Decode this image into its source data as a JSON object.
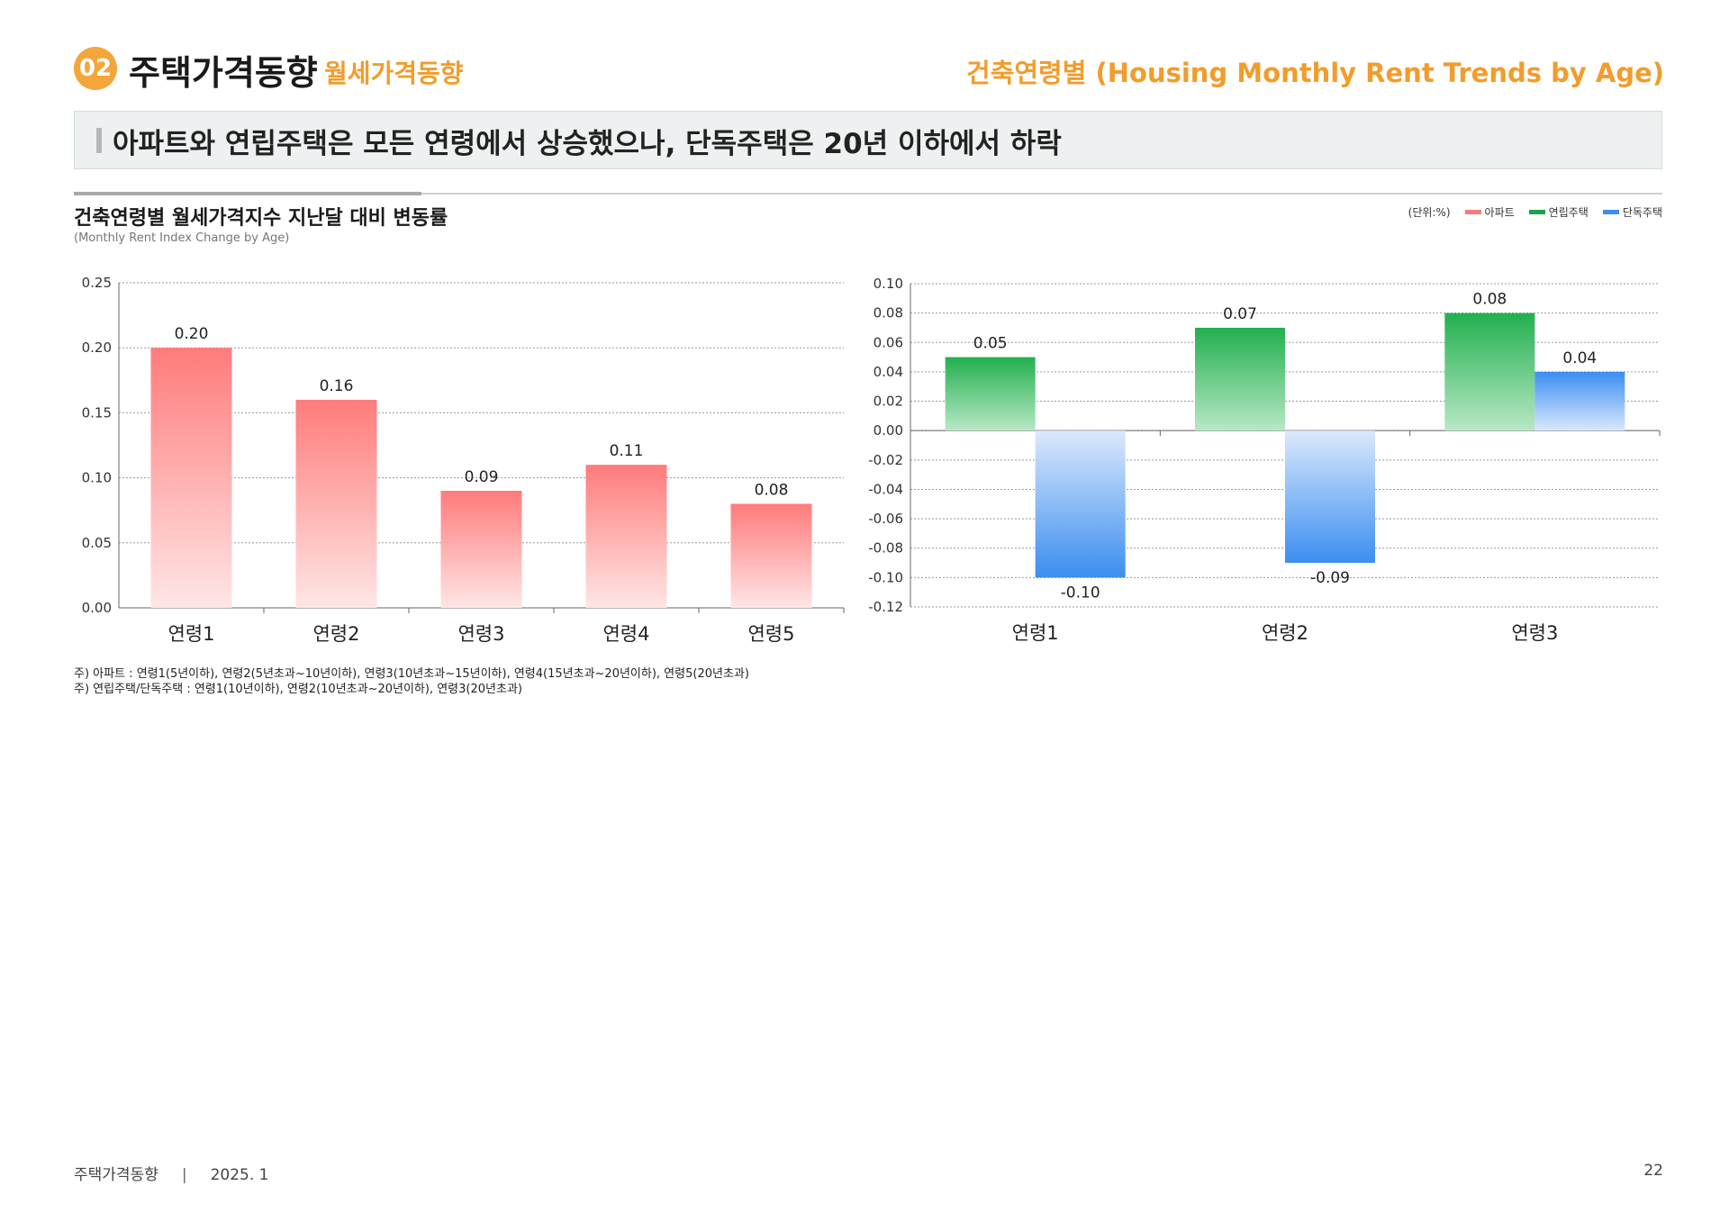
{
  "header": {
    "badge": "02",
    "section_title": "주택가격동향",
    "section_subtitle": "월세가격동향",
    "topic": "건축연령별 (Housing Monthly Rent Trends by Age)"
  },
  "headline": "아파트와 연립주택은 모든 연령에서 상승했으나, 단독주택은 20년 이하에서 하락",
  "chart_header": {
    "title": "건축연령별 월세가격지수 지난달 대비 변동률",
    "subtitle": "(Monthly Rent Index Change by Age)",
    "unit": "(단위:%)",
    "legend": [
      {
        "label": "아파트",
        "color": "#f47c7c"
      },
      {
        "label": "연립주택",
        "color": "#1aa34a"
      },
      {
        "label": "단독주택",
        "color": "#3b8ef0"
      }
    ]
  },
  "chart_data": [
    {
      "type": "bar",
      "categories": [
        "연령1",
        "연령2",
        "연령3",
        "연령4",
        "연령5"
      ],
      "series": [
        {
          "name": "아파트",
          "values": [
            0.2,
            0.16,
            0.09,
            0.11,
            0.08
          ],
          "labels": [
            "0.20",
            "0.16",
            "0.09",
            "0.11",
            "0.08"
          ],
          "color": "#ff7f7f"
        }
      ],
      "ylim": [
        0,
        0.25
      ],
      "yticks": [
        "0.00",
        "0.05",
        "0.10",
        "0.15",
        "0.20",
        "0.25"
      ],
      "grid": true
    },
    {
      "type": "bar",
      "categories": [
        "연령1",
        "연령2",
        "연령3"
      ],
      "series": [
        {
          "name": "연립주택",
          "values": [
            0.05,
            0.07,
            0.08
          ],
          "labels": [
            "0.05",
            "0.07",
            "0.08"
          ],
          "color": "#2eb55a"
        },
        {
          "name": "단독주택",
          "values": [
            -0.1,
            -0.09,
            0.04
          ],
          "labels": [
            "-0.10",
            "-0.09",
            "0.04"
          ],
          "color": "#3b8ef0"
        }
      ],
      "ylim": [
        -0.12,
        0.1
      ],
      "yticks": [
        "-0.12",
        "-0.10",
        "-0.08",
        "-0.06",
        "-0.04",
        "-0.02",
        "0.00",
        "0.02",
        "0.04",
        "0.06",
        "0.08",
        "0.10"
      ],
      "grid": true
    }
  ],
  "notes": [
    "주) 아파트 : 연령1(5년이하), 연령2(5년초과~10년이하), 연령3(10년초과~15년이하), 연령4(15년초과~20년이하), 연령5(20년초과)",
    "주) 연립주택/단독주택 : 연령1(10년이하), 연령2(10년초과~20년이하), 연령3(20년초과)"
  ],
  "footer": {
    "publication": "주택가격동향",
    "date": "2025. 1",
    "page": "22"
  }
}
